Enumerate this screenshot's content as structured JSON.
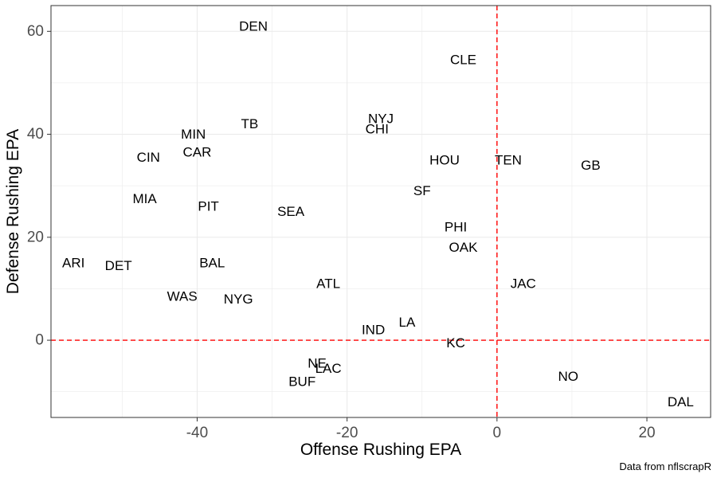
{
  "chart_data": {
    "type": "scatter",
    "xlabel": "Offense Rushing EPA",
    "ylabel": "Defense Rushing EPA",
    "caption": "Data from nflscrapR",
    "xlim": [
      -59.5,
      28.5
    ],
    "ylim": [
      -15,
      65
    ],
    "x_ticks": [
      -40,
      -20,
      0,
      20
    ],
    "y_ticks": [
      0,
      20,
      40,
      60
    ],
    "x_tick_labels": [
      "-40",
      "-20",
      "0",
      "20"
    ],
    "y_tick_labels": [
      "0",
      "20",
      "40",
      "60"
    ],
    "grid": true,
    "reference_lines": {
      "x": 0,
      "y": 0,
      "color": "#ff0000",
      "style": "dashed"
    },
    "points": [
      {
        "label": "DEN",
        "x": -32.5,
        "y": 61.0
      },
      {
        "label": "CLE",
        "x": -4.5,
        "y": 54.5
      },
      {
        "label": "NYJ",
        "x": -15.5,
        "y": 43.0
      },
      {
        "label": "CHI",
        "x": -16.0,
        "y": 41.0
      },
      {
        "label": "TB",
        "x": -33.0,
        "y": 42.0
      },
      {
        "label": "MIN",
        "x": -40.5,
        "y": 40.0
      },
      {
        "label": "CAR",
        "x": -40.0,
        "y": 36.5
      },
      {
        "label": "CIN",
        "x": -46.5,
        "y": 35.5
      },
      {
        "label": "HOU",
        "x": -7.0,
        "y": 35.0
      },
      {
        "label": "TEN",
        "x": 1.5,
        "y": 35.0
      },
      {
        "label": "GB",
        "x": 12.5,
        "y": 34.0
      },
      {
        "label": "SF",
        "x": -10.0,
        "y": 29.0
      },
      {
        "label": "MIA",
        "x": -47.0,
        "y": 27.5
      },
      {
        "label": "PIT",
        "x": -38.5,
        "y": 26.0
      },
      {
        "label": "SEA",
        "x": -27.5,
        "y": 25.0
      },
      {
        "label": "PHI",
        "x": -5.5,
        "y": 22.0
      },
      {
        "label": "OAK",
        "x": -4.5,
        "y": 18.0
      },
      {
        "label": "ARI",
        "x": -56.5,
        "y": 15.0
      },
      {
        "label": "DET",
        "x": -50.5,
        "y": 14.5
      },
      {
        "label": "BAL",
        "x": -38.0,
        "y": 15.0
      },
      {
        "label": "ATL",
        "x": -22.5,
        "y": 11.0
      },
      {
        "label": "JAC",
        "x": 3.5,
        "y": 11.0
      },
      {
        "label": "WAS",
        "x": -42.0,
        "y": 8.5
      },
      {
        "label": "NYG",
        "x": -34.5,
        "y": 8.0
      },
      {
        "label": "IND",
        "x": -16.5,
        "y": 2.0
      },
      {
        "label": "LA",
        "x": -12.0,
        "y": 3.5
      },
      {
        "label": "KC",
        "x": -5.5,
        "y": -0.5
      },
      {
        "label": "NE",
        "x": -24.0,
        "y": -4.5
      },
      {
        "label": "LAC",
        "x": -22.5,
        "y": -5.5
      },
      {
        "label": "BUF",
        "x": -26.0,
        "y": -8.0
      },
      {
        "label": "NO",
        "x": 9.5,
        "y": -7.0
      },
      {
        "label": "DAL",
        "x": 24.5,
        "y": -12.0
      }
    ],
    "colors": {
      "reference_line": "#ff0000",
      "grid": "#ebebeb",
      "panel_border": "#333333",
      "tick_text": "#4d4d4d",
      "label_text": "#000000"
    }
  }
}
